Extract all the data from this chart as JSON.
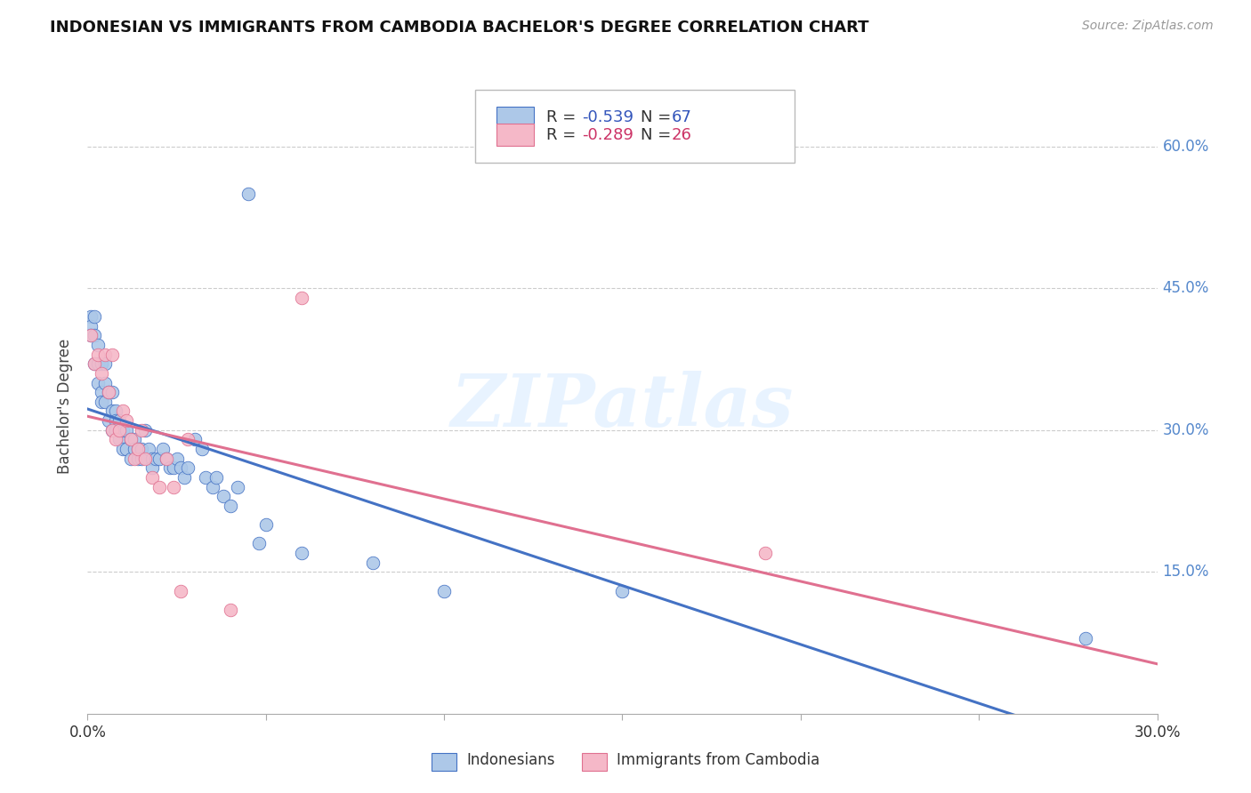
{
  "title": "INDONESIAN VS IMMIGRANTS FROM CAMBODIA BACHELOR'S DEGREE CORRELATION CHART",
  "source": "Source: ZipAtlas.com",
  "ylabel": "Bachelor's Degree",
  "xmin": 0.0,
  "xmax": 0.3,
  "ymin": 0.0,
  "ymax": 0.65,
  "yticks": [
    0.15,
    0.3,
    0.45,
    0.6
  ],
  "ytick_labels": [
    "15.0%",
    "30.0%",
    "45.0%",
    "60.0%"
  ],
  "xtick_labels": [
    "0.0%",
    "30.0%"
  ],
  "legend_r1": "-0.539",
  "legend_n1": "67",
  "legend_r2": "-0.289",
  "legend_n2": "26",
  "color_blue": "#adc8e8",
  "color_pink": "#f5b8c8",
  "line_blue": "#4472c4",
  "line_pink": "#e07090",
  "watermark": "ZIPatlas",
  "indonesians_x": [
    0.001,
    0.001,
    0.001,
    0.002,
    0.002,
    0.002,
    0.003,
    0.003,
    0.003,
    0.004,
    0.004,
    0.004,
    0.005,
    0.005,
    0.005,
    0.006,
    0.006,
    0.007,
    0.007,
    0.007,
    0.008,
    0.008,
    0.008,
    0.009,
    0.009,
    0.01,
    0.01,
    0.011,
    0.011,
    0.012,
    0.012,
    0.013,
    0.013,
    0.014,
    0.014,
    0.015,
    0.015,
    0.016,
    0.017,
    0.018,
    0.018,
    0.019,
    0.02,
    0.021,
    0.022,
    0.023,
    0.024,
    0.025,
    0.026,
    0.027,
    0.028,
    0.03,
    0.032,
    0.033,
    0.035,
    0.036,
    0.038,
    0.04,
    0.042,
    0.045,
    0.048,
    0.05,
    0.06,
    0.08,
    0.1,
    0.15,
    0.28
  ],
  "indonesians_y": [
    0.42,
    0.41,
    0.4,
    0.42,
    0.4,
    0.37,
    0.39,
    0.37,
    0.35,
    0.37,
    0.34,
    0.33,
    0.37,
    0.35,
    0.33,
    0.34,
    0.31,
    0.34,
    0.32,
    0.3,
    0.32,
    0.31,
    0.3,
    0.31,
    0.29,
    0.3,
    0.28,
    0.3,
    0.28,
    0.29,
    0.27,
    0.29,
    0.28,
    0.28,
    0.27,
    0.28,
    0.27,
    0.3,
    0.28,
    0.27,
    0.26,
    0.27,
    0.27,
    0.28,
    0.27,
    0.26,
    0.26,
    0.27,
    0.26,
    0.25,
    0.26,
    0.29,
    0.28,
    0.25,
    0.24,
    0.25,
    0.23,
    0.22,
    0.24,
    0.55,
    0.18,
    0.2,
    0.17,
    0.16,
    0.13,
    0.13,
    0.08
  ],
  "cambodia_x": [
    0.001,
    0.002,
    0.003,
    0.004,
    0.005,
    0.006,
    0.007,
    0.007,
    0.008,
    0.009,
    0.01,
    0.011,
    0.012,
    0.013,
    0.014,
    0.015,
    0.016,
    0.018,
    0.02,
    0.022,
    0.024,
    0.026,
    0.028,
    0.04,
    0.06,
    0.19
  ],
  "cambodia_y": [
    0.4,
    0.37,
    0.38,
    0.36,
    0.38,
    0.34,
    0.3,
    0.38,
    0.29,
    0.3,
    0.32,
    0.31,
    0.29,
    0.27,
    0.28,
    0.3,
    0.27,
    0.25,
    0.24,
    0.27,
    0.24,
    0.13,
    0.29,
    0.11,
    0.44,
    0.17
  ]
}
